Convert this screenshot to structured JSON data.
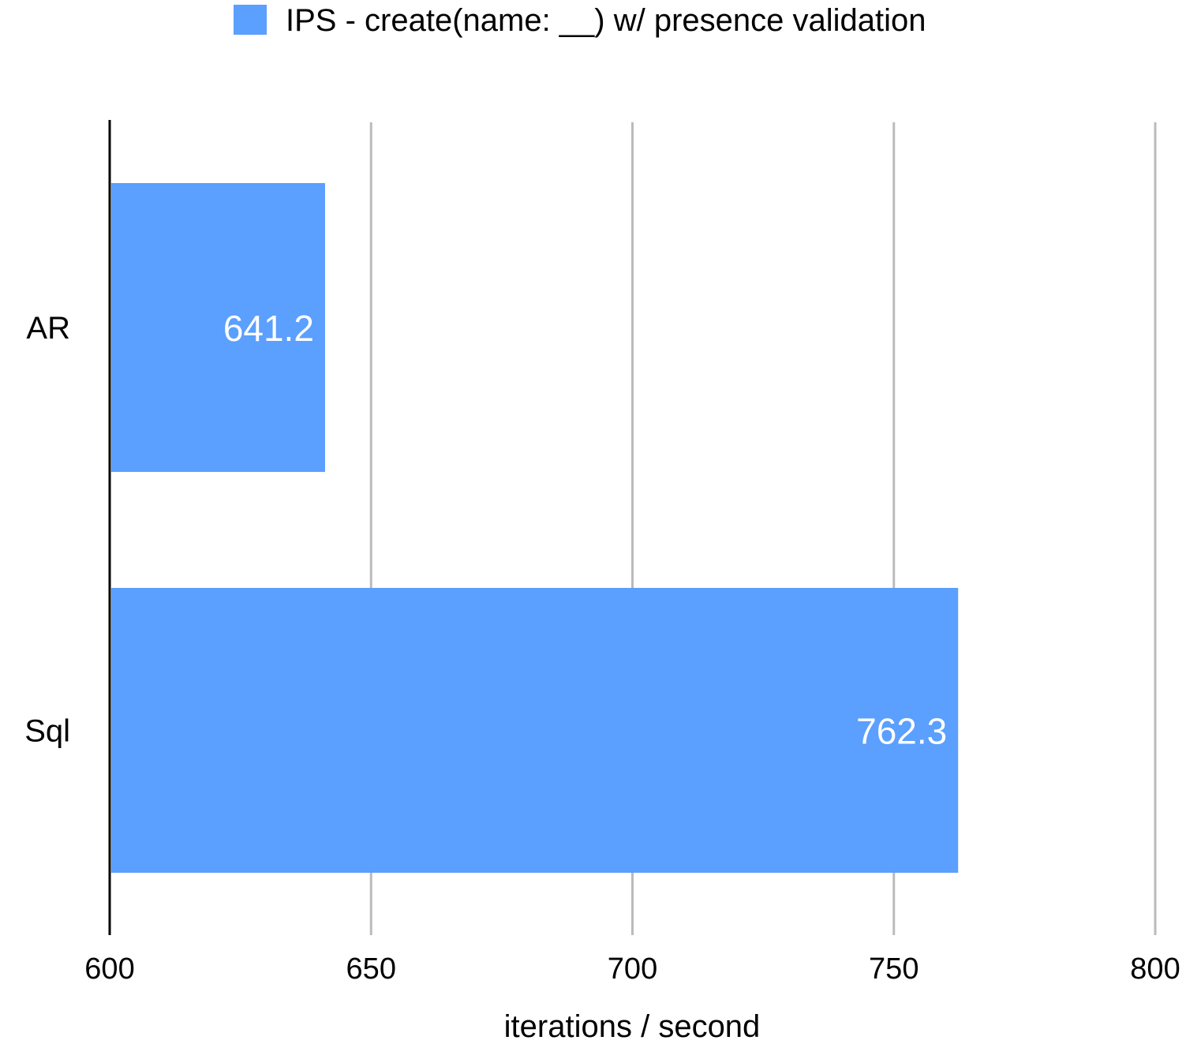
{
  "chart_data": {
    "type": "bar",
    "orientation": "horizontal",
    "categories": [
      "AR",
      "Sql"
    ],
    "series": [
      {
        "name": "IPS - create(name: __) w/ presence validation",
        "values": [
          641.2,
          762.3
        ],
        "color": "#5b9fff"
      }
    ],
    "data_labels": [
      "641.2",
      "762.3"
    ],
    "xlabel": "iterations / second",
    "ylabel": "",
    "xlim": [
      600,
      800
    ],
    "x_ticks": [
      600,
      650,
      700,
      750,
      800
    ],
    "x_tick_labels": [
      "600",
      "650",
      "700",
      "750",
      "800"
    ],
    "grid": true,
    "legend_position": "top-center"
  },
  "colors": {
    "bar": "#5b9fff",
    "grid": "#bbbbbb",
    "axis": "#000000",
    "data_label": "#ffffff"
  }
}
